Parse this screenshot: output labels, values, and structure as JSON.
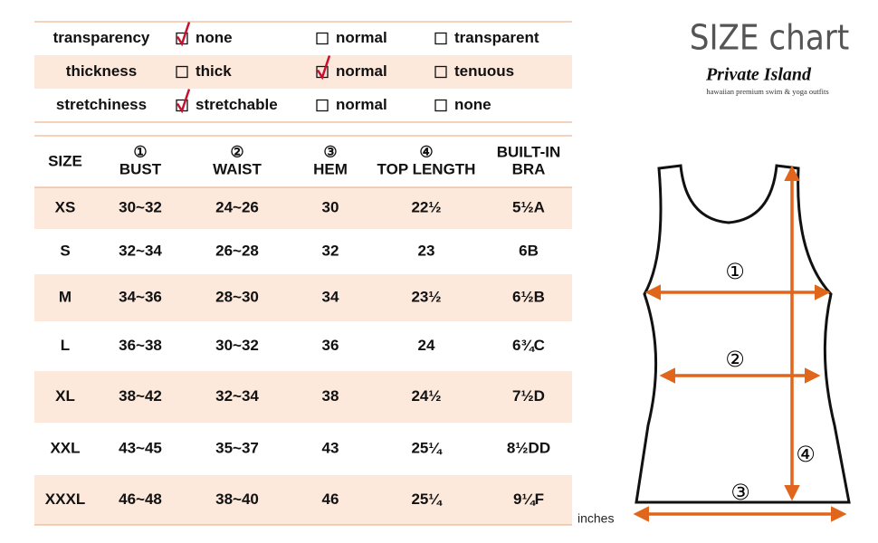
{
  "brand": {
    "title": "SIZE chart",
    "name": "Private Island",
    "tagline": "hawaiian premium swim & yoga outfits"
  },
  "properties": [
    {
      "label": "transparency",
      "options": [
        {
          "text": "none",
          "checked": true
        },
        {
          "text": "normal",
          "checked": false
        },
        {
          "text": "transparent",
          "checked": false
        }
      ]
    },
    {
      "label": "thickness",
      "options": [
        {
          "text": "thick",
          "checked": false
        },
        {
          "text": "normal",
          "checked": true
        },
        {
          "text": "tenuous",
          "checked": false
        }
      ]
    },
    {
      "label": "stretchiness",
      "options": [
        {
          "text": "stretchable",
          "checked": true
        },
        {
          "text": "normal",
          "checked": false
        },
        {
          "text": "none",
          "checked": false
        }
      ]
    }
  ],
  "table": {
    "header": [
      [
        "SIZE"
      ],
      [
        "①",
        "BUST"
      ],
      [
        "②",
        "WAIST"
      ],
      [
        "③",
        "HEM"
      ],
      [
        "④",
        "TOP  LENGTH"
      ],
      [
        "BUILT-IN",
        "BRA"
      ]
    ],
    "rows": [
      [
        "XS",
        "30~32",
        "24~26",
        "30",
        "22½",
        "5½A"
      ],
      [
        "S",
        "32~34",
        "26~28",
        "32",
        "23",
        "6B"
      ],
      [
        "M",
        "34~36",
        "28~30",
        "34",
        "23½",
        "6½B"
      ],
      [
        "L",
        "36~38",
        "30~32",
        "36",
        "24",
        "6¾C"
      ],
      [
        "XL",
        "38~42",
        "32~34",
        "38",
        "24½",
        "7½D"
      ],
      [
        "XXL",
        "43~45",
        "35~37",
        "43",
        "25¼",
        "8½DD"
      ],
      [
        "XXXL",
        "46~48",
        "38~40",
        "46",
        "25¼",
        "9¼F"
      ]
    ]
  },
  "diagram": {
    "labels": [
      "①",
      "②",
      "③",
      "④"
    ],
    "unit": "inches"
  }
}
